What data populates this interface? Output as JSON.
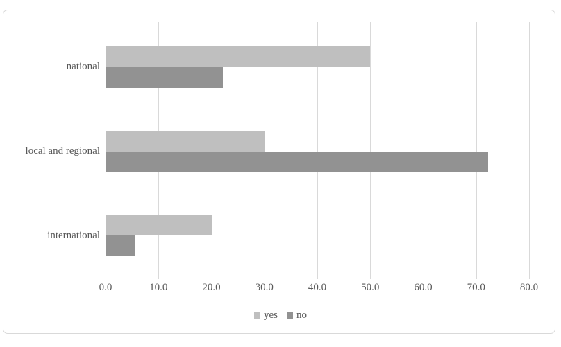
{
  "colors": {
    "background": "#ffffff",
    "border": "#d9d9d9",
    "gridline": "#d9d9d9",
    "text": "#595959",
    "series_yes": "#bfbfbf",
    "series_no": "#929292"
  },
  "chart_data": {
    "type": "bar",
    "orientation": "horizontal",
    "title": "",
    "categories": [
      "national",
      "local and regional",
      "international"
    ],
    "series": [
      {
        "name": "yes",
        "color": "#bfbfbf",
        "values": [
          50.0,
          30.0,
          20.0
        ]
      },
      {
        "name": "no",
        "color": "#929292",
        "values": [
          22.2,
          72.2,
          5.6
        ]
      }
    ],
    "xlim": [
      0,
      80
    ],
    "xticks": [
      0,
      10,
      20,
      30,
      40,
      50,
      60,
      70,
      80
    ],
    "xtick_labels": [
      "0.0",
      "10.0",
      "20.0",
      "30.0",
      "40.0",
      "50.0",
      "60.0",
      "70.0",
      "80.0"
    ],
    "grid": "vertical-only",
    "legend_position": "bottom-center"
  }
}
